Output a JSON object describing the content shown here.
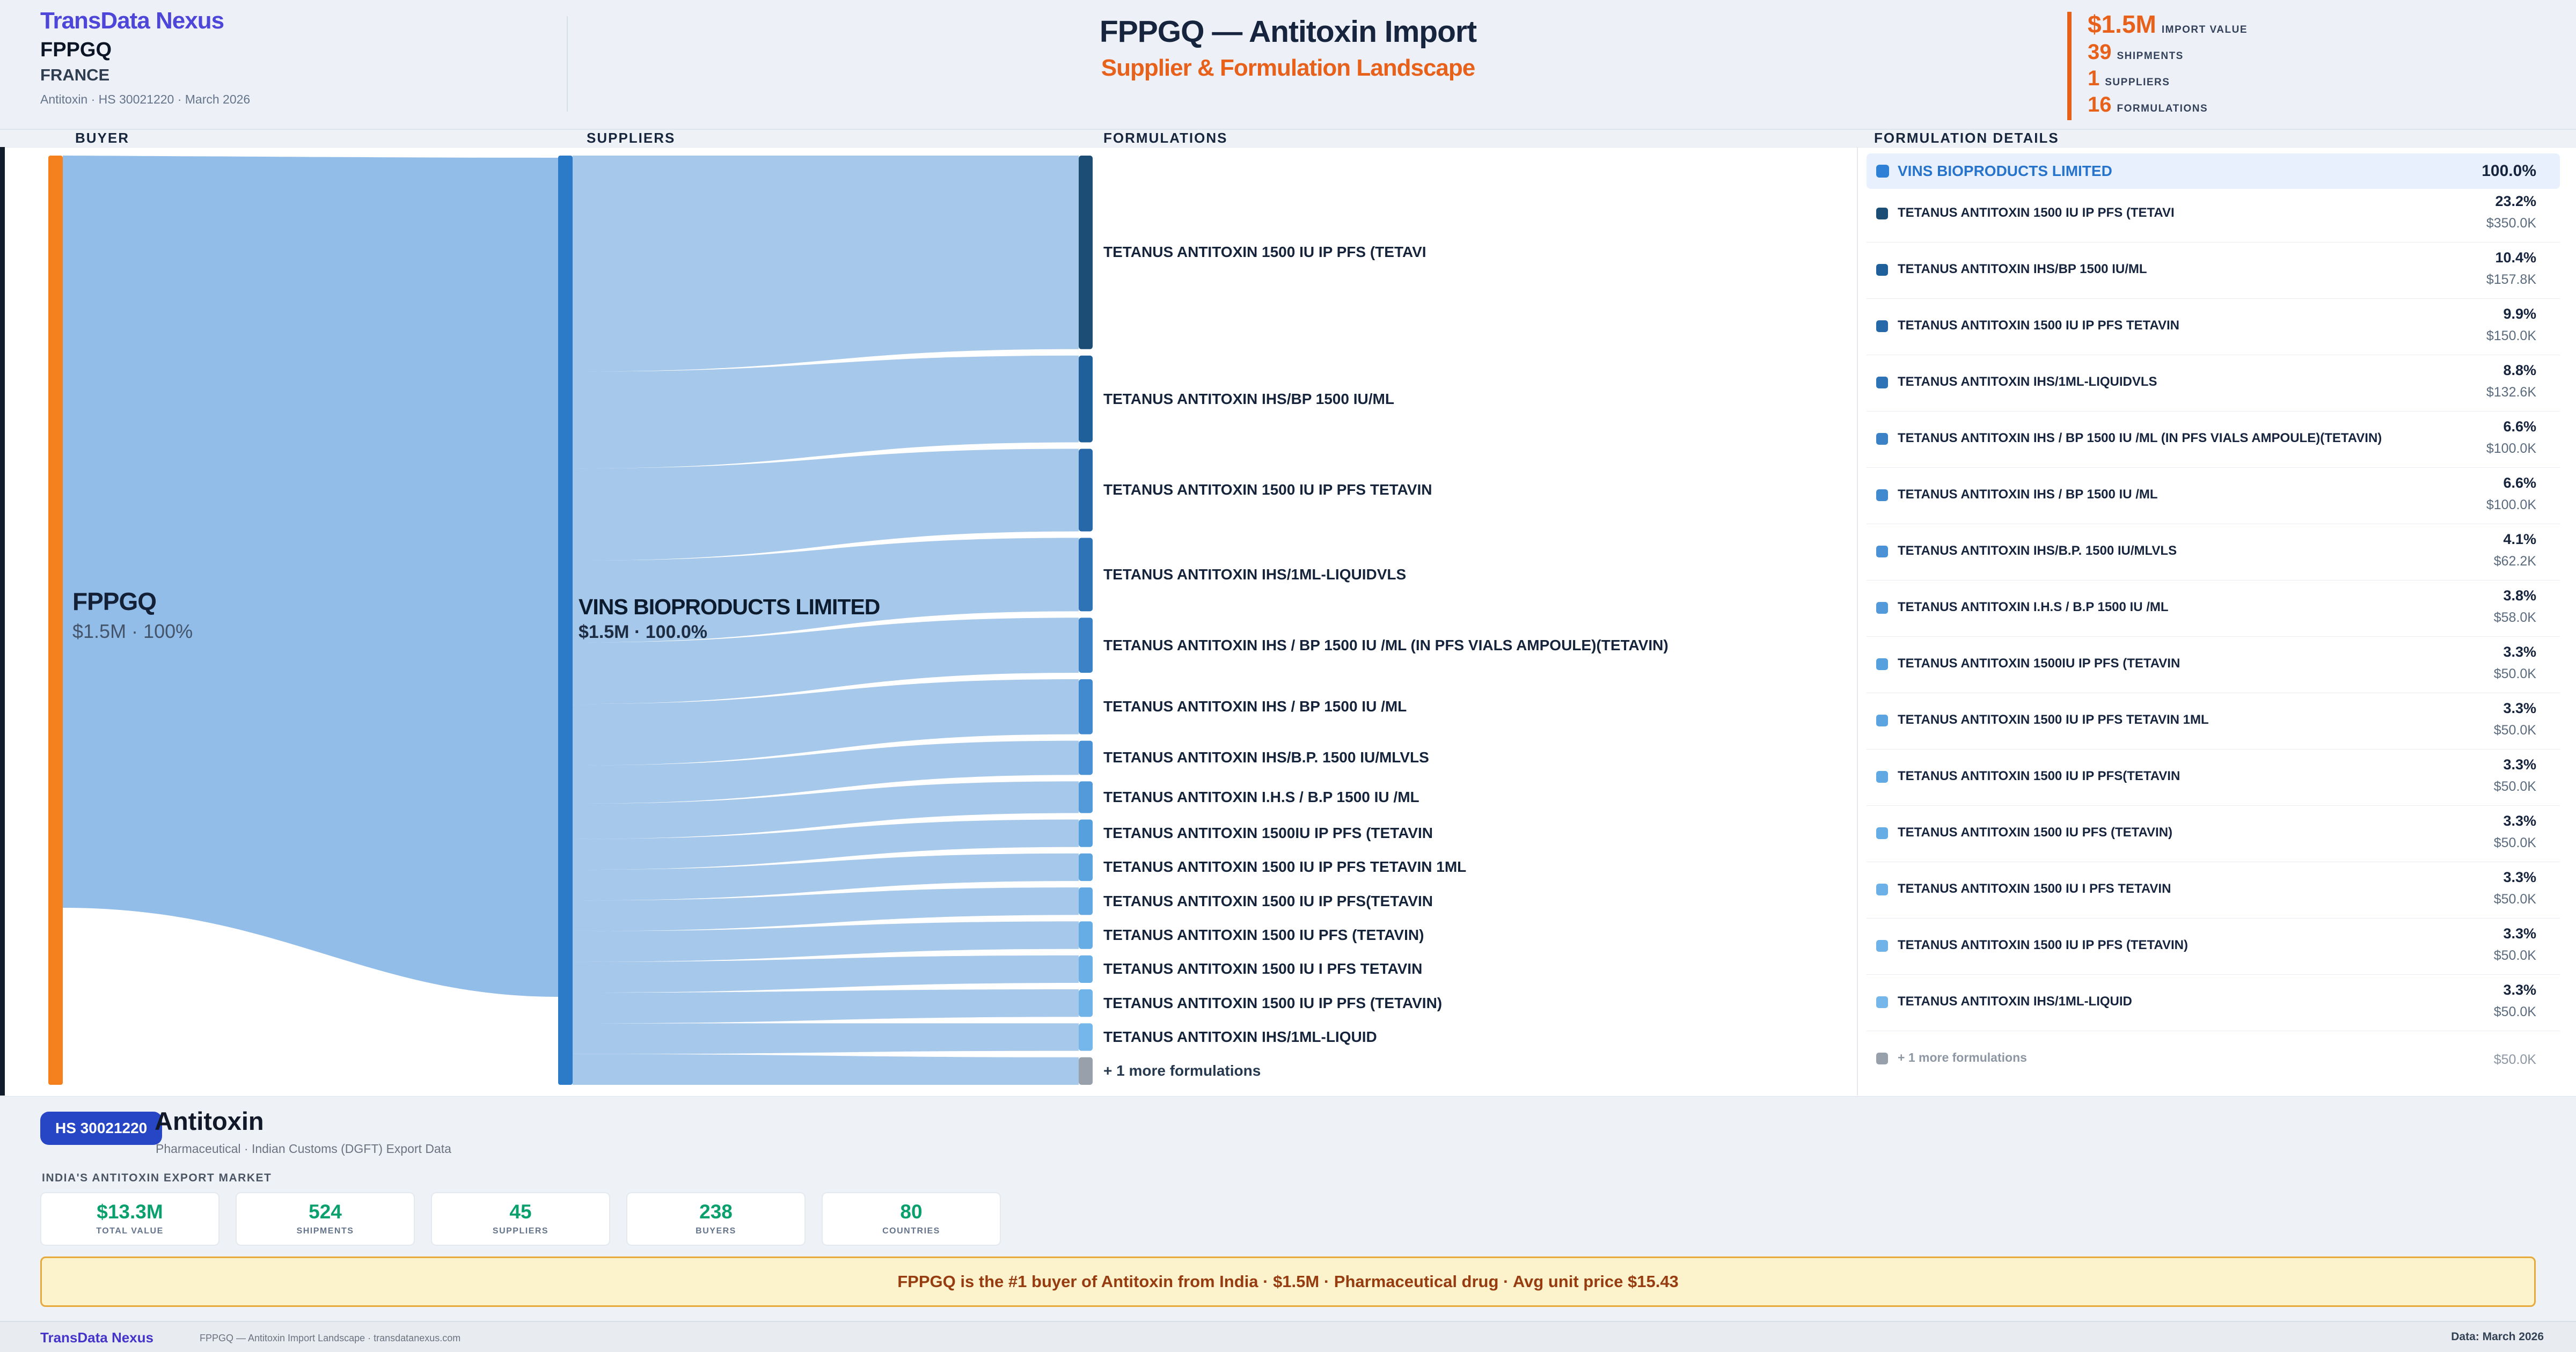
{
  "brand": {
    "name": "TransData Nexus"
  },
  "header": {
    "buyer": "FPPGQ",
    "country": "FRANCE",
    "context": "Antitoxin · HS 30021220 · March 2026",
    "title": "FPPGQ — Antitoxin Import",
    "subtitle": "Supplier & Formulation Landscape",
    "stats": [
      {
        "value": "$1.5M",
        "label": "IMPORT VALUE"
      },
      {
        "value": "39",
        "label": "SHIPMENTS"
      },
      {
        "value": "1",
        "label": "SUPPLIERS"
      },
      {
        "value": "16",
        "label": "FORMULATIONS"
      }
    ]
  },
  "columns": {
    "buyer": "BUYER",
    "suppliers": "SUPPLIERS",
    "formulations": "FORMULATIONS"
  },
  "chart_data": {
    "type": "sankey",
    "title": "FPPGQ — Antitoxin Import: Supplier & Formulation Landscape",
    "total_import_value": "$1.5M",
    "nodes": {
      "buyer": {
        "label": "FPPGQ",
        "sub": "$1.5M · 100%",
        "color": "#f5811e"
      },
      "supplier": {
        "label": "VINS BIOPRODUCTS LIMITED",
        "sub": "$1.5M · 100.0%",
        "color": "#2b7bc9"
      }
    },
    "link_colors": {
      "buyer_flow": "#8cb9e8",
      "formulation_flow": "#4e92d8"
    },
    "formulations": [
      {
        "label": "TETANUS ANTITOXIN 1500 IU IP PFS (TETAVI",
        "pct": 23.2,
        "pct_label": "23.2%",
        "value": "$350.0K",
        "color": "#1c4e75"
      },
      {
        "label": "TETANUS ANTITOXIN IHS/BP 1500 IU/ML",
        "pct": 10.4,
        "pct_label": "10.4%",
        "value": "$157.8K",
        "color": "#20609a"
      },
      {
        "label": "TETANUS ANTITOXIN 1500 IU IP PFS TETAVIN",
        "pct": 9.9,
        "pct_label": "9.9%",
        "value": "$150.0K",
        "color": "#2668a8"
      },
      {
        "label": "TETANUS ANTITOXIN IHS/1ML-LIQUIDVLS",
        "pct": 8.8,
        "pct_label": "8.8%",
        "value": "$132.6K",
        "color": "#2f73b7"
      },
      {
        "label": "TETANUS ANTITOXIN IHS / BP 1500 IU /ML (IN PFS VIALS AMPOULE)(TETAVIN)",
        "pct": 6.6,
        "pct_label": "6.6%",
        "value": "$100.0K",
        "color": "#3a81c6"
      },
      {
        "label": "TETANUS ANTITOXIN IHS / BP 1500 IU /ML",
        "pct": 6.6,
        "pct_label": "6.6%",
        "value": "$100.0K",
        "color": "#428ad0"
      },
      {
        "label": "TETANUS ANTITOXIN IHS/B.P. 1500 IU/MLVLS",
        "pct": 4.1,
        "pct_label": "4.1%",
        "value": "$62.2K",
        "color": "#4a91d6"
      },
      {
        "label": "TETANUS ANTITOXIN I.H.S / B.P 1500 IU /ML",
        "pct": 3.8,
        "pct_label": "3.8%",
        "value": "$58.0K",
        "color": "#529ada"
      },
      {
        "label": "TETANUS ANTITOXIN 1500IU IP PFS (TETAVIN",
        "pct": 3.3,
        "pct_label": "3.3%",
        "value": "$50.0K",
        "color": "#57a0de"
      },
      {
        "label": "TETANUS ANTITOXIN 1500 IU IP PFS TETAVIN 1ML",
        "pct": 3.3,
        "pct_label": "3.3%",
        "value": "$50.0K",
        "color": "#5ca4e0"
      },
      {
        "label": "TETANUS ANTITOXIN 1500 IU IP PFS(TETAVIN",
        "pct": 3.3,
        "pct_label": "3.3%",
        "value": "$50.0K",
        "color": "#62a8e3"
      },
      {
        "label": "TETANUS ANTITOXIN 1500 IU PFS (TETAVIN)",
        "pct": 3.3,
        "pct_label": "3.3%",
        "value": "$50.0K",
        "color": "#66ace5"
      },
      {
        "label": "TETANUS ANTITOXIN 1500 IU I PFS TETAVIN",
        "pct": 3.3,
        "pct_label": "3.3%",
        "value": "$50.0K",
        "color": "#6bb0e7"
      },
      {
        "label": "TETANUS ANTITOXIN 1500 IU IP PFS (TETAVIN)",
        "pct": 3.3,
        "pct_label": "3.3%",
        "value": "$50.0K",
        "color": "#70b3e8"
      },
      {
        "label": "TETANUS ANTITOXIN IHS/1ML-LIQUID",
        "pct": 3.3,
        "pct_label": "3.3%",
        "value": "$50.0K",
        "color": "#75b7ea"
      }
    ],
    "more_row": {
      "label": "+ 1 more formulations",
      "pct": 3.3,
      "value": "$50.0K",
      "color": "#98a1ab"
    }
  },
  "details": {
    "header": "FORMULATION DETAILS",
    "supplier_row": {
      "pct": "100.0%",
      "swatch_color": "#2e7fd6"
    }
  },
  "product": {
    "badge": "HS 30021220",
    "name": "Antitoxin",
    "sub": "Pharmaceutical · Indian Customs (DGFT) Export Data",
    "market_label": "INDIA'S ANTITOXIN EXPORT MARKET",
    "stats": [
      {
        "value": "$13.3M",
        "label": "TOTAL VALUE"
      },
      {
        "value": "524",
        "label": "SHIPMENTS"
      },
      {
        "value": "45",
        "label": "SUPPLIERS"
      },
      {
        "value": "238",
        "label": "BUYERS"
      },
      {
        "value": "80",
        "label": "COUNTRIES"
      }
    ]
  },
  "insight": {
    "text": "FPPGQ is the #1 buyer of Antitoxin from India · $1.5M · Pharmaceutical drug · Avg unit price $15.43"
  },
  "footer": {
    "brand": "TransData Nexus",
    "text": "FPPGQ — Antitoxin Import Landscape · transdatanexus.com",
    "date": "Data: March 2026"
  }
}
